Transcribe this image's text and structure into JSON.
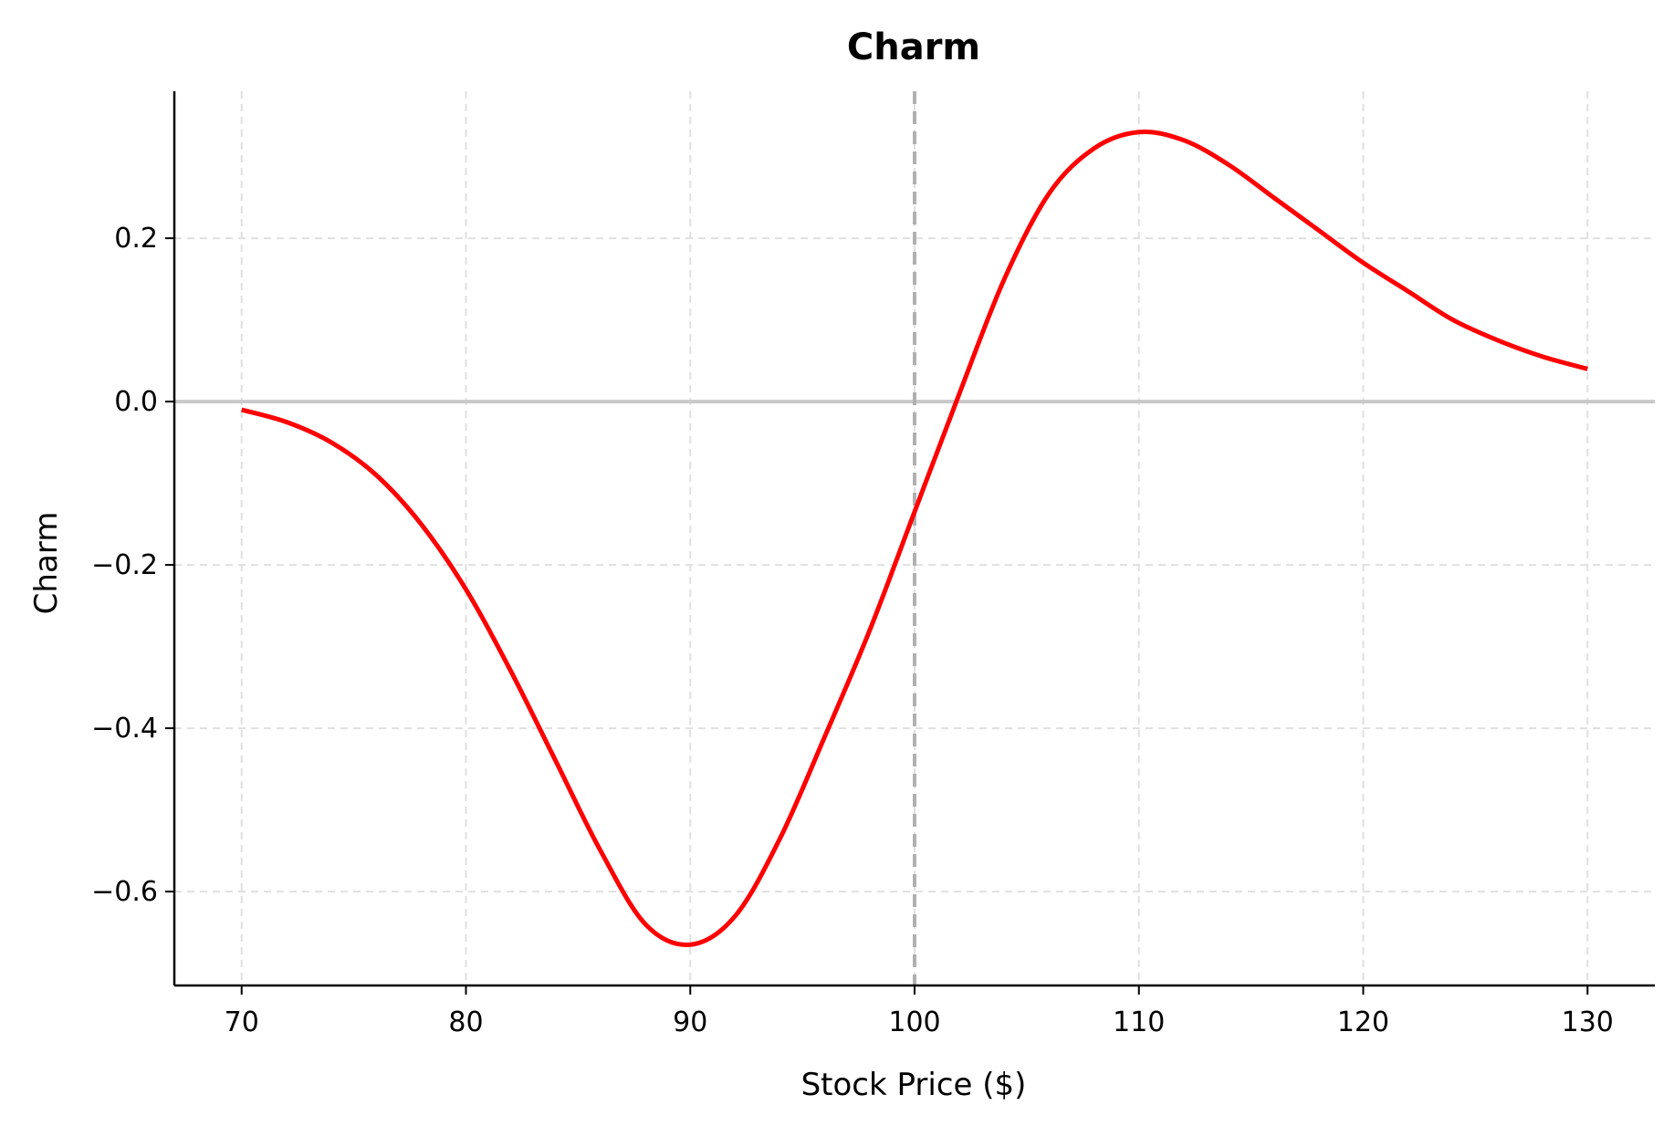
{
  "chart_data": {
    "type": "line",
    "title": "Charm",
    "xlabel": "Stock Price ($)",
    "ylabel": "Charm",
    "xlim": [
      67,
      133
    ],
    "ylim": [
      -0.715,
      0.38
    ],
    "xticks": [
      70,
      80,
      90,
      100,
      110,
      120,
      130
    ],
    "xtick_labels": [
      "70",
      "80",
      "90",
      "100",
      "110",
      "120",
      "130"
    ],
    "yticks": [
      -0.6,
      -0.4,
      -0.2,
      0.0,
      0.2
    ],
    "ytick_labels": [
      "−0.6",
      "−0.4",
      "−0.2",
      "0.0",
      "0.2"
    ],
    "grid": true,
    "reference_lines": {
      "horizontal_y": 0.0,
      "vertical_x": 100
    },
    "colors": {
      "line": "#ff0000",
      "grid": "#e0e0e0",
      "reference": "#b0b0b0",
      "zero_line": "#c8c8c8"
    },
    "series": [
      {
        "x": [
          70,
          72,
          74,
          76,
          78,
          80,
          82,
          84,
          86,
          88,
          90,
          92,
          94,
          96,
          98,
          100,
          102,
          104,
          106,
          108,
          110,
          112,
          114,
          116,
          118,
          120,
          122,
          124,
          126,
          128,
          130
        ],
        "y": [
          -0.01,
          -0.025,
          -0.05,
          -0.09,
          -0.15,
          -0.23,
          -0.33,
          -0.44,
          -0.55,
          -0.64,
          -0.665,
          -0.63,
          -0.535,
          -0.41,
          -0.28,
          -0.135,
          0.01,
          0.15,
          0.255,
          0.31,
          0.33,
          0.32,
          0.29,
          0.25,
          0.21,
          0.17,
          0.135,
          0.1,
          0.075,
          0.055,
          0.04
        ]
      }
    ]
  }
}
